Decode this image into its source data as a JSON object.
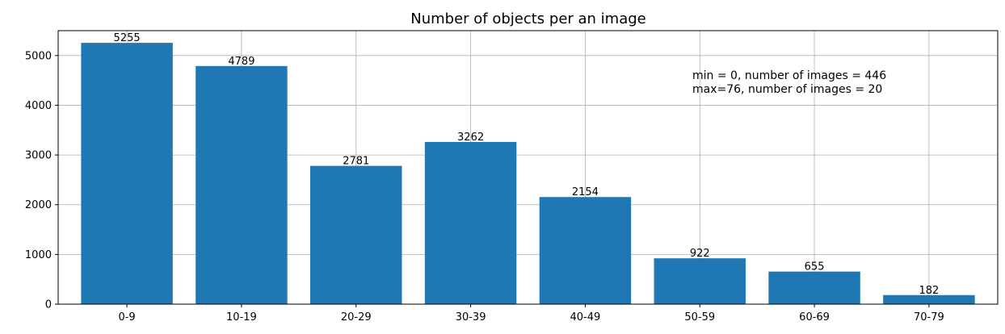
{
  "chart_data": {
    "type": "bar",
    "title": "Number of objects per an image",
    "xlabel": "",
    "ylabel": "",
    "categories": [
      "0-9",
      "10-19",
      "20-29",
      "30-39",
      "40-49",
      "50-59",
      "60-69",
      "70-79"
    ],
    "values": [
      5255,
      4789,
      2781,
      3262,
      2154,
      922,
      655,
      182
    ],
    "data_labels": [
      "5255",
      "4789",
      "2781",
      "3262",
      "2154",
      "922",
      "655",
      "182"
    ],
    "ylim": [
      0,
      5500
    ],
    "yticks": [
      0,
      1000,
      2000,
      3000,
      4000,
      5000
    ],
    "grid": true,
    "bar_color": "#1f77b4",
    "annotations": [
      "min = 0, number of images = 446",
      "max=76, number of images = 20"
    ]
  }
}
